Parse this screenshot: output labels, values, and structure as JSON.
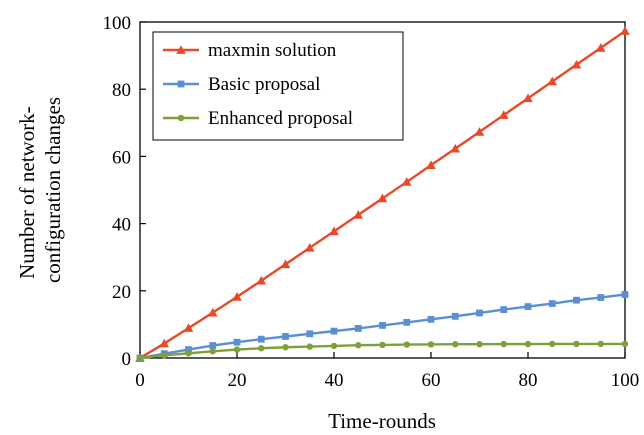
{
  "chart_data": {
    "type": "line",
    "xlabel": "Time-rounds",
    "ylabel_lines": [
      "Number of network-",
      "configuration changes"
    ],
    "xlim": [
      0,
      100
    ],
    "ylim": [
      0,
      100
    ],
    "xticks": [
      "0",
      "20",
      "40",
      "60",
      "80",
      "100"
    ],
    "yticks": [
      "0",
      "20",
      "40",
      "60",
      "80",
      "100"
    ],
    "grid": false,
    "legend_position": "top-left",
    "x": [
      0,
      5,
      10,
      15,
      20,
      25,
      30,
      35,
      40,
      45,
      50,
      55,
      60,
      65,
      70,
      75,
      80,
      85,
      90,
      95,
      100
    ],
    "series": [
      {
        "name": "maxmin solution",
        "color": "#e8492a",
        "marker": "triangle",
        "values": [
          0,
          4.3,
          8.9,
          13.5,
          18.2,
          23,
          27.9,
          32.8,
          37.7,
          42.6,
          47.5,
          52.4,
          57.4,
          62.3,
          67.3,
          72.3,
          77.3,
          82.3,
          87.3,
          92.3,
          97.3
        ]
      },
      {
        "name": "Basic proposal",
        "color": "#5b8fd4",
        "marker": "square",
        "values": [
          0,
          1.3,
          2.5,
          3.7,
          4.7,
          5.6,
          6.4,
          7.2,
          8.0,
          8.8,
          9.7,
          10.6,
          11.5,
          12.4,
          13.4,
          14.4,
          15.3,
          16.2,
          17.2,
          18.0,
          18.9
        ]
      },
      {
        "name": "Enhanced proposal",
        "color": "#7da03a",
        "marker": "circle",
        "values": [
          0,
          0.8,
          1.4,
          2.0,
          2.5,
          2.9,
          3.2,
          3.4,
          3.6,
          3.8,
          3.9,
          4.0,
          4.05,
          4.1,
          4.1,
          4.15,
          4.15,
          4.2,
          4.2,
          4.2,
          4.2
        ]
      }
    ]
  }
}
